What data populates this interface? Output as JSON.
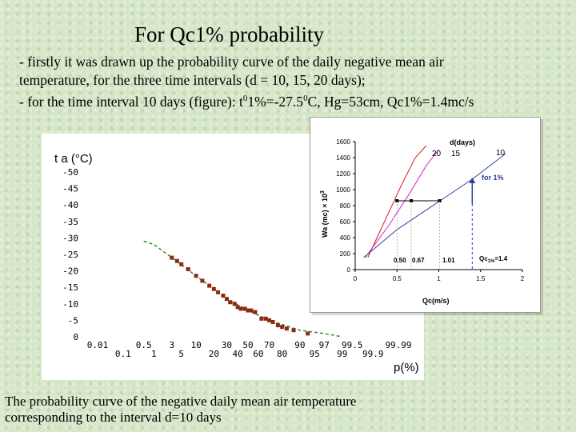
{
  "slide": {
    "title": "For Qc1% probability",
    "bullet1_line1": "- firstly it was drawn up the probability curve of the daily negative mean air",
    "bullet1_line2": "temperature, for the three time intervals (d = 10, 15, 20 days);",
    "bullet2_prefix": "- for the time interval 10 days (figure): t",
    "bullet2_sup1": "0",
    "bullet2_mid": "1%=-27.5",
    "bullet2_sup2": "0",
    "bullet2_suffix": "C, Hg=53cm, Qc1%=1.4mc/s",
    "caption_line1": "The probability curve of the negative daily mean air temperature",
    "caption_line2": "corresponding to the interval d=10 days"
  },
  "chart_data": [
    {
      "type": "scatter",
      "ylabel": "t a (°C)",
      "xlabel": "p(%)",
      "y_ticks": [
        "-50",
        "-45",
        "-40",
        "-35",
        "-30",
        "-25",
        "-20",
        "-15",
        "-10",
        "-5",
        "0"
      ],
      "x_ticks_upper": [
        "0.01",
        "0.5",
        "3",
        "10",
        "30",
        "50",
        "70",
        "90",
        "97",
        "99.5",
        "99.99"
      ],
      "x_ticks_lower": [
        "0.1",
        "1",
        "5",
        "20",
        "40",
        "60",
        "80",
        "95",
        "99",
        "99.9"
      ],
      "x_tick_values": [
        0.01,
        0.1,
        0.5,
        1,
        3,
        5,
        10,
        20,
        30,
        40,
        50,
        60,
        70,
        80,
        90,
        95,
        97,
        99,
        99.5,
        99.9,
        99.99
      ],
      "ylim": [
        -50,
        0
      ],
      "scale": "probability",
      "marker_color": "#8b2a10",
      "fit_color": "#2e8b2e",
      "points": [
        {
          "x": 3,
          "y": -24
        },
        {
          "x": 4,
          "y": -23
        },
        {
          "x": 5,
          "y": -22
        },
        {
          "x": 7,
          "y": -20.5
        },
        {
          "x": 10,
          "y": -18.5
        },
        {
          "x": 13,
          "y": -17
        },
        {
          "x": 17,
          "y": -15.5
        },
        {
          "x": 20,
          "y": -14.5
        },
        {
          "x": 23,
          "y": -13.5
        },
        {
          "x": 27,
          "y": -12.5
        },
        {
          "x": 30,
          "y": -11.5
        },
        {
          "x": 33,
          "y": -10.5
        },
        {
          "x": 37,
          "y": -10
        },
        {
          "x": 40,
          "y": -9
        },
        {
          "x": 43,
          "y": -8.5
        },
        {
          "x": 47,
          "y": -8.5
        },
        {
          "x": 50,
          "y": -8
        },
        {
          "x": 53,
          "y": -8
        },
        {
          "x": 57,
          "y": -7.5
        },
        {
          "x": 63,
          "y": -5.5
        },
        {
          "x": 67,
          "y": -5.5
        },
        {
          "x": 70,
          "y": -5
        },
        {
          "x": 73,
          "y": -4.5
        },
        {
          "x": 77,
          "y": -3.5
        },
        {
          "x": 80,
          "y": -3
        },
        {
          "x": 83,
          "y": -2.5
        },
        {
          "x": 87,
          "y": -2
        },
        {
          "x": 93,
          "y": -1
        }
      ],
      "fit": [
        {
          "x": 0.5,
          "y": -29
        },
        {
          "x": 1,
          "y": -28
        },
        {
          "x": 3,
          "y": -24
        },
        {
          "x": 10,
          "y": -18.5
        },
        {
          "x": 30,
          "y": -11.5
        },
        {
          "x": 50,
          "y": -8
        },
        {
          "x": 70,
          "y": -5
        },
        {
          "x": 90,
          "y": -2
        },
        {
          "x": 97,
          "y": -1
        },
        {
          "x": 99,
          "y": 0
        }
      ]
    },
    {
      "type": "line",
      "xlabel": "Qc(m/s)",
      "ylabel": "Wa (mc) × 10",
      "ylabel_sup": "3",
      "x_ticks": [
        "0",
        "0.5",
        "1",
        "1.5",
        "2"
      ],
      "x_tick_values": [
        0,
        0.5,
        1,
        1.5,
        2
      ],
      "y_ticks": [
        "0",
        "200",
        "400",
        "600",
        "800",
        "1000",
        "1200",
        "1400",
        "1600"
      ],
      "y_tick_values": [
        0,
        200,
        400,
        600,
        800,
        1000,
        1200,
        1400,
        1600
      ],
      "xlim": [
        0,
        2
      ],
      "ylim": [
        0,
        1600
      ],
      "legend_title": "d(days)",
      "series": [
        {
          "name": "20",
          "color": "#d62020",
          "points": [
            [
              0.15,
              150
            ],
            [
              0.35,
              600
            ],
            [
              0.55,
              1050
            ],
            [
              0.72,
              1400
            ],
            [
              0.85,
              1550
            ]
          ]
        },
        {
          "name": "15",
          "color": "#d020c0",
          "points": [
            [
              0.12,
              150
            ],
            [
              0.4,
              550
            ],
            [
              0.65,
              950
            ],
            [
              0.85,
              1300
            ],
            [
              1.0,
              1500
            ]
          ]
        },
        {
          "name": "10",
          "color": "#2c3fa0",
          "points": [
            [
              0.1,
              150
            ],
            [
              0.5,
              500
            ],
            [
              1.0,
              850
            ],
            [
              1.4,
              1130
            ],
            [
              1.8,
              1450
            ]
          ]
        }
      ],
      "marker_points": [
        [
          0.5,
          860
        ],
        [
          0.67,
          860
        ],
        [
          1.01,
          860
        ]
      ],
      "annotations": {
        "a1": "0.50",
        "a2": "0.67",
        "a3": "1.01",
        "qc_label": "Qc",
        "qc_sub": "1%",
        "qc_val": "=1.4",
        "arrow_label": "for 1%"
      }
    }
  ]
}
